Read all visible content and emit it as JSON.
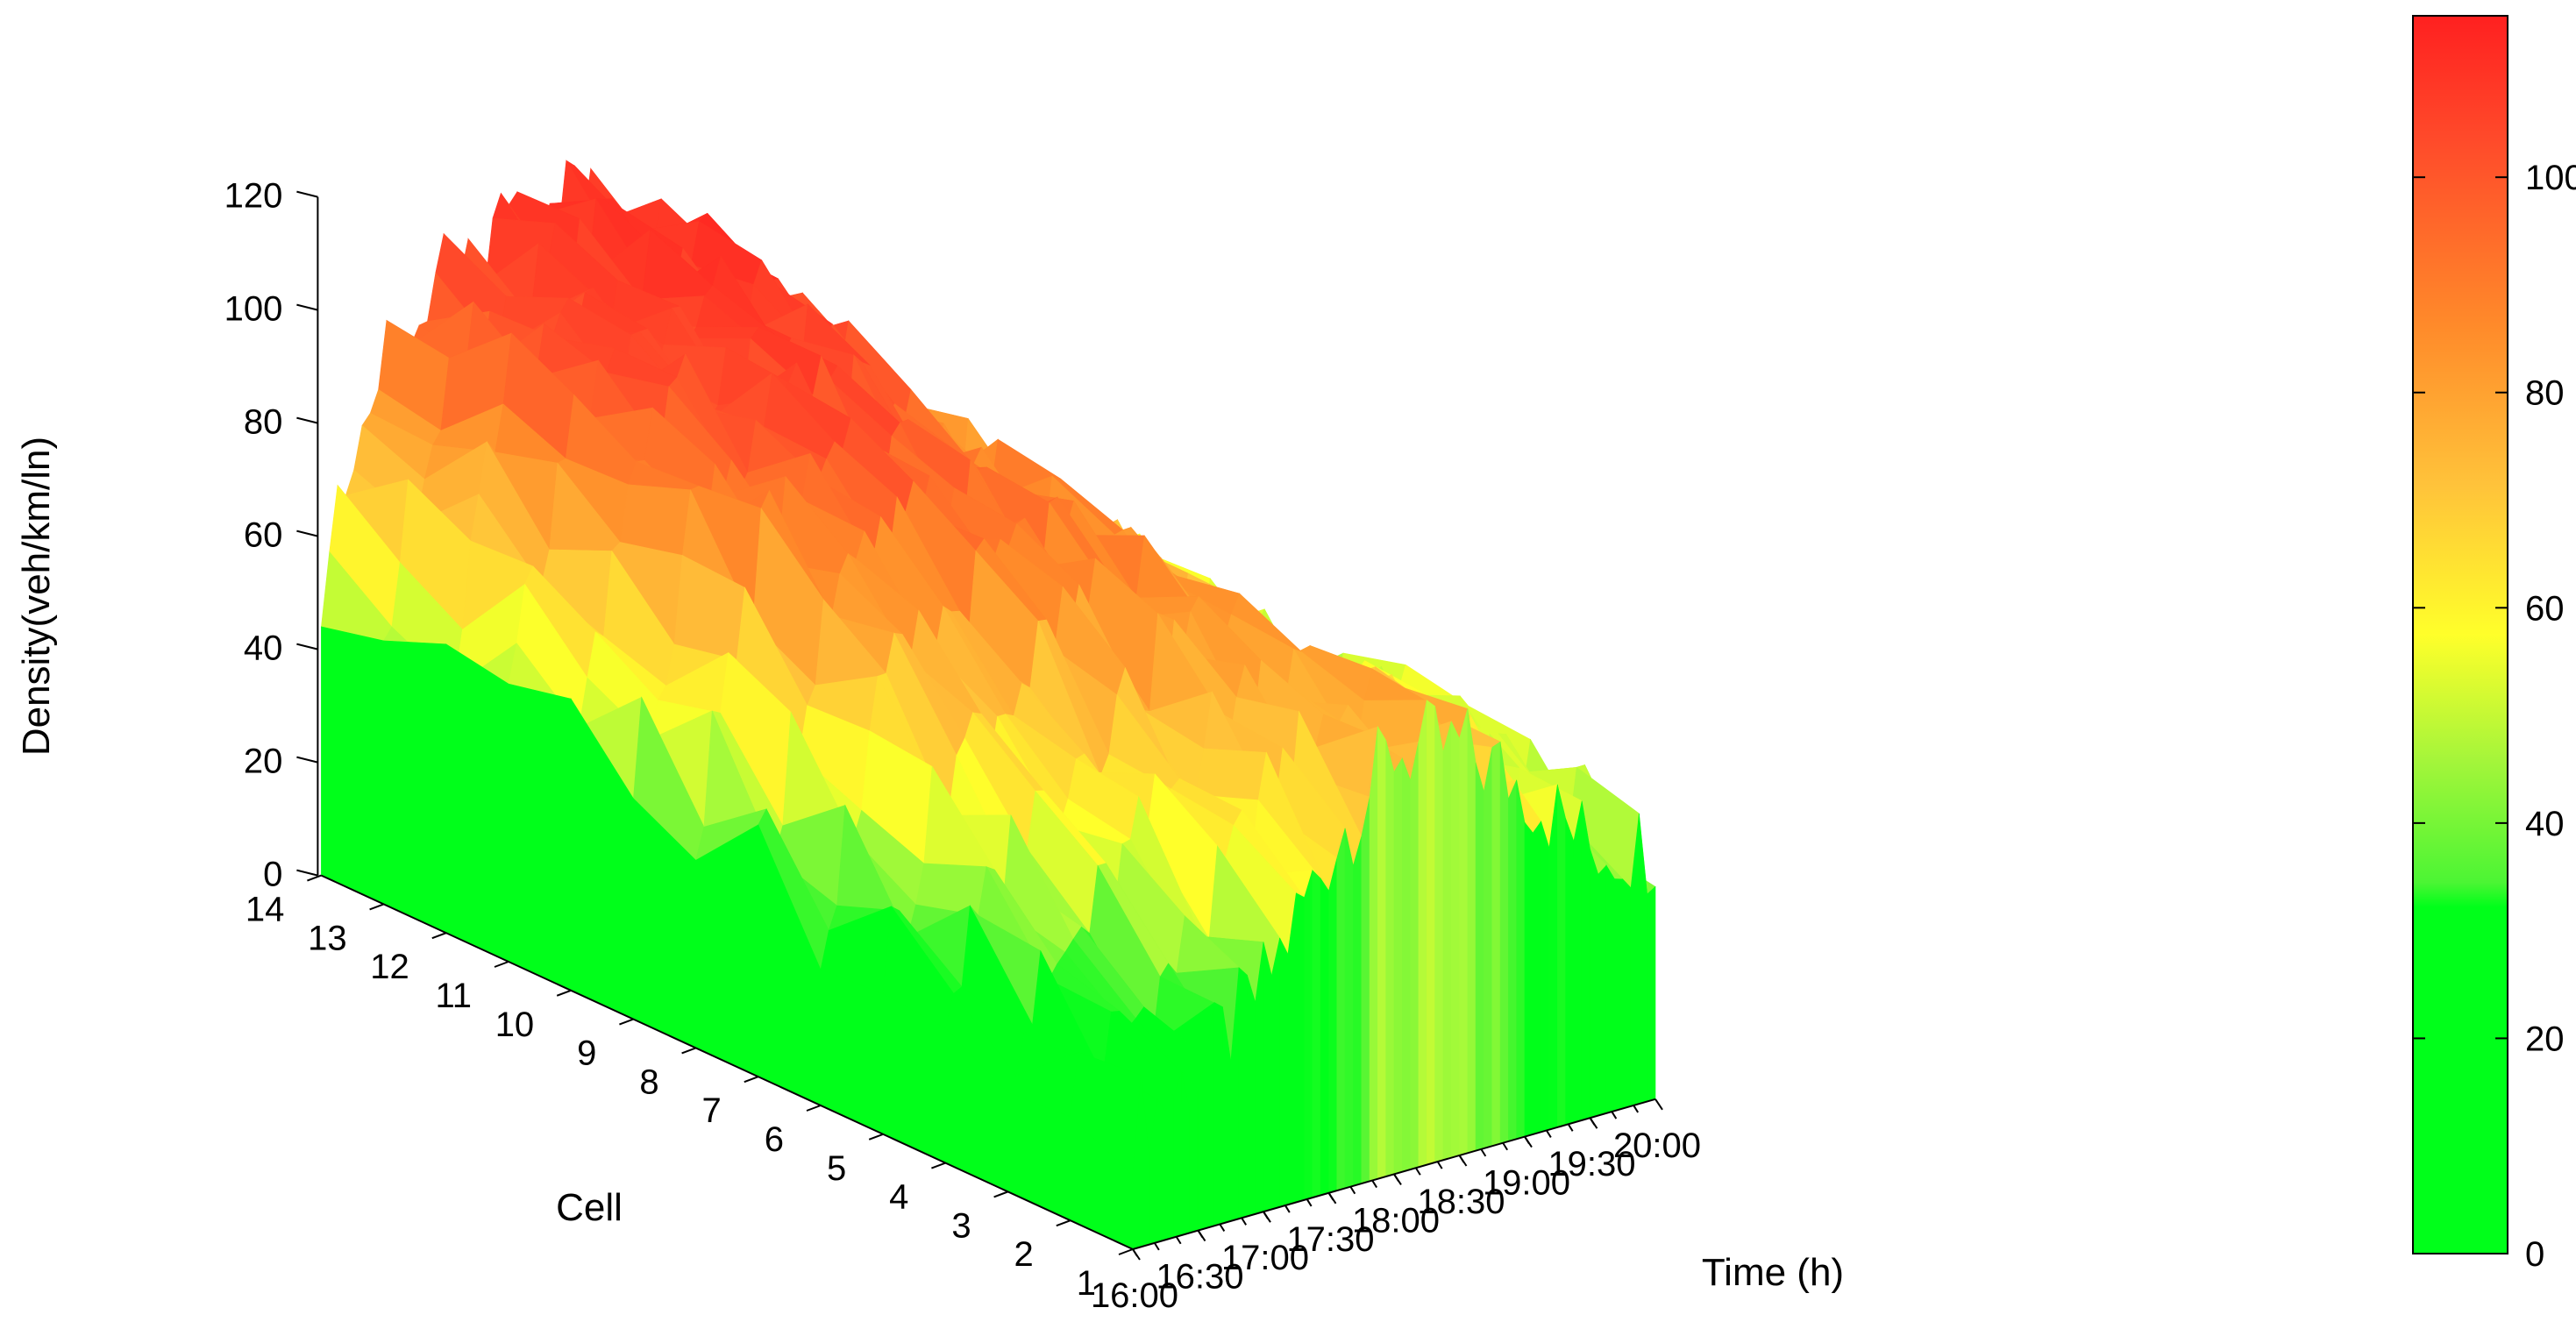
{
  "chart_data": {
    "type": "surface",
    "zlabel": "Density(veh/km/ln)",
    "xlabel": "Time (h)",
    "ylabel": "Cell",
    "z_ticks": [
      "0",
      "20",
      "40",
      "60",
      "80",
      "100",
      "120"
    ],
    "zlim": [
      0,
      120
    ],
    "time_ticks": [
      "16:00",
      "16:30",
      "17:00",
      "17:30",
      "18:00",
      "18:30",
      "19:00",
      "19:30",
      "20:00"
    ],
    "cell_ticks": [
      "1",
      "2",
      "3",
      "4",
      "5",
      "6",
      "7",
      "8",
      "9",
      "10",
      "11",
      "12",
      "13",
      "14"
    ],
    "colorbar": {
      "ticks": [
        "0",
        "20",
        "40",
        "60",
        "80",
        "100"
      ],
      "range": [
        0,
        115
      ],
      "colors": [
        "#00ff1a",
        "#57f52f",
        "#c8ff3a",
        "#ffff2a",
        "#ffc33a",
        "#ff8a2a",
        "#ff4a2a",
        "#ff2020"
      ]
    },
    "grid": false,
    "profile": [
      {
        "time": "16:00",
        "density": [
          22,
          24,
          26,
          28,
          30,
          32,
          36,
          40,
          42,
          44,
          45,
          46,
          47,
          48
        ]
      },
      {
        "time": "16:30",
        "density": [
          28,
          32,
          40,
          52,
          62,
          70,
          78,
          86,
          90,
          92,
          93,
          94,
          95,
          96
        ]
      },
      {
        "time": "17:00",
        "density": [
          40,
          45,
          55,
          65,
          72,
          80,
          88,
          94,
          98,
          100,
          100,
          100,
          100,
          99
        ]
      },
      {
        "time": "17:30",
        "density": [
          60,
          65,
          70,
          76,
          82,
          88,
          92,
          96,
          100,
          104,
          106,
          107,
          108,
          108
        ]
      },
      {
        "time": "18:00",
        "density": [
          75,
          77,
          80,
          82,
          84,
          86,
          88,
          92,
          96,
          100,
          104,
          106,
          108,
          110
        ]
      },
      {
        "time": "18:30",
        "density": [
          72,
          72,
          73,
          74,
          75,
          76,
          78,
          80,
          82,
          84,
          86,
          88,
          86,
          84
        ]
      },
      {
        "time": "19:00",
        "density": [
          62,
          62,
          62,
          63,
          64,
          64,
          65,
          66,
          68,
          70,
          72,
          72,
          70,
          68
        ]
      },
      {
        "time": "19:30",
        "density": [
          48,
          48,
          50,
          50,
          52,
          52,
          54,
          54,
          56,
          58,
          58,
          60,
          58,
          56
        ]
      },
      {
        "time": "20:00",
        "density": [
          45,
          46,
          48,
          48,
          50,
          50,
          50,
          52,
          52,
          54,
          54,
          55,
          54,
          52
        ]
      }
    ]
  }
}
